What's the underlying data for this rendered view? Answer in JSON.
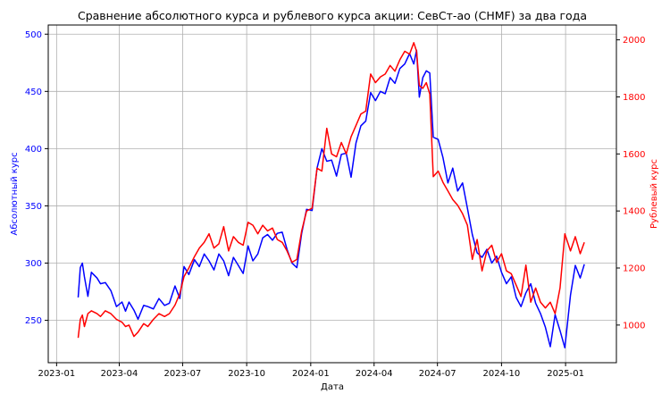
{
  "chart_data": {
    "type": "line",
    "title": "Сравнение абсолютного курса и рублевого курса акции: СевСт-ао (CHMF) за два года",
    "xlabel": "Дата",
    "ylabel_left": "Абсолютный курс",
    "ylabel_right": "Рублевый курс",
    "xlim": [
      "2022-12-20",
      "2025-03-15"
    ],
    "ylim_left": [
      213,
      508
    ],
    "ylim_right": [
      868,
      2052
    ],
    "grid": true,
    "x_ticks": [
      "2023-01",
      "2023-04",
      "2023-07",
      "2023-10",
      "2024-01",
      "2024-04",
      "2024-07",
      "2024-10",
      "2025-01"
    ],
    "y_ticks_left": [
      "250",
      "300",
      "350",
      "400",
      "450",
      "500"
    ],
    "y_ticks_right": [
      "1000",
      "1200",
      "1400",
      "1600",
      "1800",
      "2000"
    ],
    "colors": {
      "left": "#0000ff",
      "right": "#ff0000"
    },
    "series": [
      {
        "axis": "left",
        "color": "#0000ff",
        "x": [
          "2023-02-01",
          "2023-02-04",
          "2023-02-07",
          "2023-02-10",
          "2023-02-15",
          "2023-02-20",
          "2023-02-28",
          "2023-03-05",
          "2023-03-12",
          "2023-03-20",
          "2023-03-28",
          "2023-04-05",
          "2023-04-10",
          "2023-04-15",
          "2023-04-22",
          "2023-04-28",
          "2023-05-06",
          "2023-05-12",
          "2023-05-20",
          "2023-05-28",
          "2023-06-05",
          "2023-06-12",
          "2023-06-20",
          "2023-06-27",
          "2023-07-03",
          "2023-07-10",
          "2023-07-18",
          "2023-07-25",
          "2023-08-01",
          "2023-08-08",
          "2023-08-15",
          "2023-08-22",
          "2023-08-29",
          "2023-09-05",
          "2023-09-12",
          "2023-09-19",
          "2023-09-26",
          "2023-10-03",
          "2023-10-10",
          "2023-10-17",
          "2023-10-24",
          "2023-10-31",
          "2023-11-07",
          "2023-11-14",
          "2023-11-21",
          "2023-11-28",
          "2023-12-05",
          "2023-12-12",
          "2023-12-19",
          "2023-12-26",
          "2024-01-03",
          "2024-01-10",
          "2024-01-17",
          "2024-01-24",
          "2024-01-31",
          "2024-02-07",
          "2024-02-14",
          "2024-02-21",
          "2024-02-28",
          "2024-03-06",
          "2024-03-13",
          "2024-03-20",
          "2024-03-27",
          "2024-04-03",
          "2024-04-10",
          "2024-04-17",
          "2024-04-24",
          "2024-05-01",
          "2024-05-08",
          "2024-05-15",
          "2024-05-22",
          "2024-05-28",
          "2024-06-01",
          "2024-06-05",
          "2024-06-10",
          "2024-06-15",
          "2024-06-20",
          "2024-06-25",
          "2024-07-02",
          "2024-07-09",
          "2024-07-16",
          "2024-07-23",
          "2024-07-30",
          "2024-08-06",
          "2024-08-13",
          "2024-08-20",
          "2024-08-27",
          "2024-09-03",
          "2024-09-10",
          "2024-09-17",
          "2024-09-24",
          "2024-10-01",
          "2024-10-08",
          "2024-10-15",
          "2024-10-22",
          "2024-10-29",
          "2024-11-05",
          "2024-11-12",
          "2024-11-19",
          "2024-11-26",
          "2024-12-03",
          "2024-12-10",
          "2024-12-17",
          "2024-12-24",
          "2024-12-31",
          "2025-01-08",
          "2025-01-15",
          "2025-01-22",
          "2025-01-28"
        ],
        "values": [
          270,
          296,
          300,
          288,
          271,
          292,
          287,
          282,
          283,
          276,
          262,
          266,
          258,
          266,
          259,
          251,
          263,
          262,
          260,
          269,
          263,
          265,
          280,
          269,
          297,
          290,
          303,
          297,
          308,
          302,
          294,
          308,
          302,
          289,
          305,
          298,
          291,
          315,
          302,
          308,
          322,
          325,
          320,
          326,
          327,
          312,
          300,
          296,
          326,
          347,
          346,
          383,
          400,
          389,
          390,
          376,
          395,
          396,
          375,
          405,
          420,
          424,
          449,
          442,
          450,
          448,
          462,
          457,
          470,
          474,
          483,
          474,
          486,
          445,
          462,
          468,
          466,
          410,
          408,
          392,
          370,
          383,
          363,
          370,
          348,
          325,
          309,
          305,
          312,
          300,
          306,
          292,
          282,
          288,
          270,
          262,
          274,
          282,
          265,
          256,
          244,
          227,
          255,
          241,
          226,
          272,
          298,
          287,
          299
        ]
      },
      {
        "axis": "right",
        "color": "#ff0000",
        "x": [
          "2023-02-01",
          "2023-02-04",
          "2023-02-07",
          "2023-02-10",
          "2023-02-15",
          "2023-02-20",
          "2023-02-28",
          "2023-03-05",
          "2023-03-12",
          "2023-03-20",
          "2023-03-28",
          "2023-04-05",
          "2023-04-10",
          "2023-04-15",
          "2023-04-22",
          "2023-04-28",
          "2023-05-06",
          "2023-05-12",
          "2023-05-20",
          "2023-05-28",
          "2023-06-05",
          "2023-06-12",
          "2023-06-20",
          "2023-06-27",
          "2023-07-03",
          "2023-07-10",
          "2023-07-18",
          "2023-07-25",
          "2023-08-01",
          "2023-08-08",
          "2023-08-15",
          "2023-08-22",
          "2023-08-29",
          "2023-09-05",
          "2023-09-12",
          "2023-09-19",
          "2023-09-26",
          "2023-10-03",
          "2023-10-10",
          "2023-10-17",
          "2023-10-24",
          "2023-10-31",
          "2023-11-07",
          "2023-11-14",
          "2023-11-21",
          "2023-11-28",
          "2023-12-05",
          "2023-12-12",
          "2023-12-19",
          "2023-12-26",
          "2024-01-03",
          "2024-01-10",
          "2024-01-17",
          "2024-01-24",
          "2024-01-31",
          "2024-02-07",
          "2024-02-14",
          "2024-02-21",
          "2024-02-28",
          "2024-03-06",
          "2024-03-13",
          "2024-03-20",
          "2024-03-27",
          "2024-04-03",
          "2024-04-10",
          "2024-04-17",
          "2024-04-24",
          "2024-05-01",
          "2024-05-08",
          "2024-05-15",
          "2024-05-22",
          "2024-05-28",
          "2024-06-01",
          "2024-06-05",
          "2024-06-10",
          "2024-06-15",
          "2024-06-20",
          "2024-06-25",
          "2024-07-02",
          "2024-07-09",
          "2024-07-16",
          "2024-07-23",
          "2024-07-30",
          "2024-08-06",
          "2024-08-13",
          "2024-08-20",
          "2024-08-27",
          "2024-09-03",
          "2024-09-10",
          "2024-09-17",
          "2024-09-24",
          "2024-10-01",
          "2024-10-08",
          "2024-10-15",
          "2024-10-22",
          "2024-10-29",
          "2024-11-05",
          "2024-11-12",
          "2024-11-19",
          "2024-11-26",
          "2024-12-03",
          "2024-12-10",
          "2024-12-17",
          "2024-12-24",
          "2024-12-31",
          "2025-01-08",
          "2025-01-15",
          "2025-01-22",
          "2025-01-28"
        ],
        "values": [
          955,
          1020,
          1035,
          995,
          1040,
          1050,
          1040,
          1030,
          1050,
          1040,
          1020,
          1010,
          995,
          1000,
          960,
          975,
          1005,
          995,
          1020,
          1040,
          1030,
          1040,
          1070,
          1110,
          1170,
          1200,
          1240,
          1270,
          1290,
          1320,
          1270,
          1285,
          1345,
          1260,
          1310,
          1290,
          1280,
          1360,
          1350,
          1320,
          1350,
          1330,
          1340,
          1300,
          1290,
          1260,
          1220,
          1230,
          1330,
          1400,
          1410,
          1550,
          1540,
          1690,
          1600,
          1590,
          1640,
          1600,
          1660,
          1700,
          1740,
          1750,
          1880,
          1850,
          1870,
          1880,
          1910,
          1890,
          1930,
          1960,
          1950,
          1990,
          1960,
          1840,
          1830,
          1850,
          1810,
          1520,
          1540,
          1500,
          1470,
          1440,
          1420,
          1390,
          1350,
          1230,
          1300,
          1190,
          1260,
          1280,
          1220,
          1250,
          1190,
          1180,
          1140,
          1100,
          1210,
          1080,
          1130,
          1080,
          1060,
          1080,
          1040,
          1130,
          1320,
          1260,
          1310,
          1250,
          1290
        ]
      }
    ]
  }
}
